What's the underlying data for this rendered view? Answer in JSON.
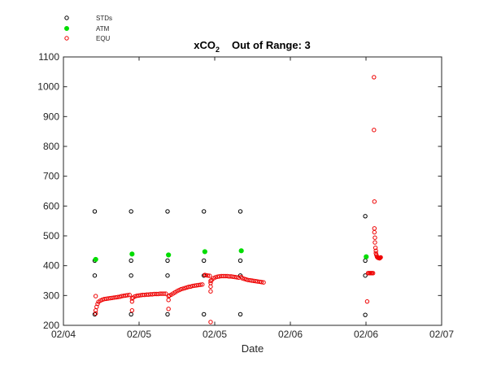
{
  "chart_data": {
    "type": "scatter",
    "title_main": "xCO",
    "title_sub": "2",
    "title_rest": "Out of Range: 3",
    "xlabel": "Date",
    "ylabel": "",
    "ylim": [
      200,
      1100
    ],
    "yticks": [
      200,
      300,
      400,
      500,
      600,
      700,
      800,
      900,
      1000,
      1100
    ],
    "x_ticks": [
      {
        "x": "2013-02-04T00:00",
        "label": "02/04"
      },
      {
        "x": "2013-02-04T12:00",
        "label": "02/05"
      },
      {
        "x": "2013-02-05T00:00",
        "label": "02/05"
      },
      {
        "x": "2013-02-05T12:00",
        "label": "02/06"
      },
      {
        "x": "2013-02-06T00:00",
        "label": "02/06"
      },
      {
        "x": "2013-02-06T12:00",
        "label": "02/07"
      }
    ],
    "xlim": [
      "2013-02-04T00:00",
      "2013-02-06T12:00"
    ],
    "legend_position": "top-left",
    "colors": {
      "stds": "#000000",
      "atm": "#00dd00",
      "equ": "#ee0000",
      "axis": "#262626"
    },
    "series": [
      {
        "name": "STDs",
        "marker": "open-circle",
        "points": [
          {
            "x": "2013-02-04T04:58",
            "y": 582
          },
          {
            "x": "2013-02-04T04:58",
            "y": 417
          },
          {
            "x": "2013-02-04T04:58",
            "y": 367
          },
          {
            "x": "2013-02-04T04:58",
            "y": 237
          },
          {
            "x": "2013-02-04T10:44",
            "y": 582
          },
          {
            "x": "2013-02-04T10:44",
            "y": 417
          },
          {
            "x": "2013-02-04T10:44",
            "y": 367
          },
          {
            "x": "2013-02-04T10:44",
            "y": 237
          },
          {
            "x": "2013-02-04T16:31",
            "y": 582
          },
          {
            "x": "2013-02-04T16:31",
            "y": 417
          },
          {
            "x": "2013-02-04T16:31",
            "y": 367
          },
          {
            "x": "2013-02-04T16:31",
            "y": 237
          },
          {
            "x": "2013-02-04T22:17",
            "y": 582
          },
          {
            "x": "2013-02-04T22:17",
            "y": 417
          },
          {
            "x": "2013-02-04T22:17",
            "y": 367
          },
          {
            "x": "2013-02-04T22:17",
            "y": 237
          },
          {
            "x": "2013-02-05T04:04",
            "y": 582
          },
          {
            "x": "2013-02-05T04:04",
            "y": 417
          },
          {
            "x": "2013-02-05T04:04",
            "y": 367
          },
          {
            "x": "2013-02-05T04:04",
            "y": 237
          },
          {
            "x": "2013-02-05T23:53",
            "y": 566
          },
          {
            "x": "2013-02-05T23:53",
            "y": 417
          },
          {
            "x": "2013-02-05T23:53",
            "y": 367
          },
          {
            "x": "2013-02-05T23:53",
            "y": 235
          }
        ]
      },
      {
        "name": "ATM",
        "marker": "filled-circle",
        "points": [
          {
            "x": "2013-02-04T05:07",
            "y": 421
          },
          {
            "x": "2013-02-04T10:53",
            "y": 439
          },
          {
            "x": "2013-02-04T16:40",
            "y": 436
          },
          {
            "x": "2013-02-04T22:26",
            "y": 447
          },
          {
            "x": "2013-02-05T04:13",
            "y": 450
          },
          {
            "x": "2013-02-06T00:02",
            "y": 430
          }
        ]
      },
      {
        "name": "EQU",
        "marker": "open-circle",
        "points": [
          {
            "x": "2013-02-04T05:07",
            "y": 298
          },
          {
            "x": "2013-02-04T05:07",
            "y": 250
          },
          {
            "x": "2013-02-04T05:07",
            "y": 240
          },
          {
            "x": "2013-02-04T05:16",
            "y": 262
          },
          {
            "x": "2013-02-04T05:25",
            "y": 272
          },
          {
            "x": "2013-02-04T05:34",
            "y": 279
          },
          {
            "x": "2013-02-04T05:53",
            "y": 283
          },
          {
            "x": "2013-02-04T06:11",
            "y": 286
          },
          {
            "x": "2013-02-04T06:29",
            "y": 288
          },
          {
            "x": "2013-02-04T06:48",
            "y": 289
          },
          {
            "x": "2013-02-04T07:06",
            "y": 290
          },
          {
            "x": "2013-02-04T07:25",
            "y": 291
          },
          {
            "x": "2013-02-04T07:43",
            "y": 292
          },
          {
            "x": "2013-02-04T08:01",
            "y": 293
          },
          {
            "x": "2013-02-04T08:20",
            "y": 294
          },
          {
            "x": "2013-02-04T08:38",
            "y": 295
          },
          {
            "x": "2013-02-04T08:57",
            "y": 296
          },
          {
            "x": "2013-02-04T09:15",
            "y": 298
          },
          {
            "x": "2013-02-04T09:34",
            "y": 299
          },
          {
            "x": "2013-02-04T09:52",
            "y": 300
          },
          {
            "x": "2013-02-04T10:10",
            "y": 301
          },
          {
            "x": "2013-02-04T10:29",
            "y": 302
          },
          {
            "x": "2013-02-04T10:53",
            "y": 290
          },
          {
            "x": "2013-02-04T10:53",
            "y": 280
          },
          {
            "x": "2013-02-04T10:53",
            "y": 250
          },
          {
            "x": "2013-02-04T11:02",
            "y": 293
          },
          {
            "x": "2013-02-04T11:20",
            "y": 297
          },
          {
            "x": "2013-02-04T11:39",
            "y": 299
          },
          {
            "x": "2013-02-04T11:57",
            "y": 300
          },
          {
            "x": "2013-02-04T12:16",
            "y": 301
          },
          {
            "x": "2013-02-04T12:34",
            "y": 302
          },
          {
            "x": "2013-02-04T12:52",
            "y": 302
          },
          {
            "x": "2013-02-04T13:11",
            "y": 303
          },
          {
            "x": "2013-02-04T13:29",
            "y": 303
          },
          {
            "x": "2013-02-04T13:48",
            "y": 304
          },
          {
            "x": "2013-02-04T14:06",
            "y": 304
          },
          {
            "x": "2013-02-04T14:24",
            "y": 305
          },
          {
            "x": "2013-02-04T14:43",
            "y": 305
          },
          {
            "x": "2013-02-04T15:01",
            "y": 305
          },
          {
            "x": "2013-02-04T15:20",
            "y": 306
          },
          {
            "x": "2013-02-04T15:38",
            "y": 306
          },
          {
            "x": "2013-02-04T15:57",
            "y": 306
          },
          {
            "x": "2013-02-04T16:15",
            "y": 306
          },
          {
            "x": "2013-02-04T16:40",
            "y": 298
          },
          {
            "x": "2013-02-04T16:40",
            "y": 285
          },
          {
            "x": "2013-02-04T16:40",
            "y": 255
          },
          {
            "x": "2013-02-04T16:49",
            "y": 300
          },
          {
            "x": "2013-02-04T17:07",
            "y": 303
          },
          {
            "x": "2013-02-04T17:26",
            "y": 307
          },
          {
            "x": "2013-02-04T17:44",
            "y": 311
          },
          {
            "x": "2013-02-04T18:03",
            "y": 315
          },
          {
            "x": "2013-02-04T18:21",
            "y": 318
          },
          {
            "x": "2013-02-04T18:39",
            "y": 321
          },
          {
            "x": "2013-02-04T18:58",
            "y": 323
          },
          {
            "x": "2013-02-04T19:16",
            "y": 325
          },
          {
            "x": "2013-02-04T19:35",
            "y": 327
          },
          {
            "x": "2013-02-04T19:53",
            "y": 329
          },
          {
            "x": "2013-02-04T20:11",
            "y": 330
          },
          {
            "x": "2013-02-04T20:30",
            "y": 332
          },
          {
            "x": "2013-02-04T20:48",
            "y": 333
          },
          {
            "x": "2013-02-04T21:07",
            "y": 334
          },
          {
            "x": "2013-02-04T21:25",
            "y": 335
          },
          {
            "x": "2013-02-04T21:44",
            "y": 336
          },
          {
            "x": "2013-02-04T22:02",
            "y": 337
          },
          {
            "x": "2013-02-04T22:26",
            "y": 369
          },
          {
            "x": "2013-02-04T22:35",
            "y": 368
          },
          {
            "x": "2013-02-04T22:54",
            "y": 367
          },
          {
            "x": "2013-02-04T23:12",
            "y": 366
          },
          {
            "x": "2013-02-04T23:21",
            "y": 349
          },
          {
            "x": "2013-02-04T23:21",
            "y": 342
          },
          {
            "x": "2013-02-04T23:21",
            "y": 330
          },
          {
            "x": "2013-02-04T23:21",
            "y": 314
          },
          {
            "x": "2013-02-04T23:21",
            "y": 211
          },
          {
            "x": "2013-02-04T23:31",
            "y": 352
          },
          {
            "x": "2013-02-04T23:49",
            "y": 358
          },
          {
            "x": "2013-02-05T00:07",
            "y": 361
          },
          {
            "x": "2013-02-05T00:26",
            "y": 363
          },
          {
            "x": "2013-02-05T00:44",
            "y": 364
          },
          {
            "x": "2013-02-05T01:03",
            "y": 365
          },
          {
            "x": "2013-02-05T01:21",
            "y": 365
          },
          {
            "x": "2013-02-05T01:39",
            "y": 365
          },
          {
            "x": "2013-02-05T01:58",
            "y": 365
          },
          {
            "x": "2013-02-05T02:16",
            "y": 364
          },
          {
            "x": "2013-02-05T02:35",
            "y": 364
          },
          {
            "x": "2013-02-05T02:53",
            "y": 363
          },
          {
            "x": "2013-02-05T03:12",
            "y": 362
          },
          {
            "x": "2013-02-05T03:30",
            "y": 361
          },
          {
            "x": "2013-02-05T03:48",
            "y": 360
          },
          {
            "x": "2013-02-05T04:13",
            "y": 362
          },
          {
            "x": "2013-02-05T04:22",
            "y": 358
          },
          {
            "x": "2013-02-05T04:40",
            "y": 356
          },
          {
            "x": "2013-02-05T04:59",
            "y": 354
          },
          {
            "x": "2013-02-05T05:17",
            "y": 352
          },
          {
            "x": "2013-02-05T05:36",
            "y": 351
          },
          {
            "x": "2013-02-05T05:54",
            "y": 350
          },
          {
            "x": "2013-02-05T06:12",
            "y": 349
          },
          {
            "x": "2013-02-05T06:31",
            "y": 348
          },
          {
            "x": "2013-02-05T06:49",
            "y": 347
          },
          {
            "x": "2013-02-05T07:08",
            "y": 346
          },
          {
            "x": "2013-02-05T07:26",
            "y": 345
          },
          {
            "x": "2013-02-05T07:45",
            "y": 344
          },
          {
            "x": "2013-02-06T00:11",
            "y": 280
          },
          {
            "x": "2013-02-06T00:20",
            "y": 375
          },
          {
            "x": "2013-02-06T00:30",
            "y": 375
          },
          {
            "x": "2013-02-06T00:39",
            "y": 375
          },
          {
            "x": "2013-02-06T00:48",
            "y": 375
          },
          {
            "x": "2013-02-06T00:57",
            "y": 375
          },
          {
            "x": "2013-02-06T01:07",
            "y": 375
          },
          {
            "x": "2013-02-06T01:16",
            "y": 1032
          },
          {
            "x": "2013-02-06T01:16",
            "y": 855
          },
          {
            "x": "2013-02-06T01:20",
            "y": 615
          },
          {
            "x": "2013-02-06T01:20",
            "y": 525
          },
          {
            "x": "2013-02-06T01:20",
            "y": 512
          },
          {
            "x": "2013-02-06T01:25",
            "y": 494
          },
          {
            "x": "2013-02-06T01:25",
            "y": 478
          },
          {
            "x": "2013-02-06T01:30",
            "y": 460
          },
          {
            "x": "2013-02-06T01:34",
            "y": 450
          },
          {
            "x": "2013-02-06T01:34",
            "y": 442
          },
          {
            "x": "2013-02-06T01:39",
            "y": 436
          },
          {
            "x": "2013-02-06T01:44",
            "y": 431
          },
          {
            "x": "2013-02-06T01:48",
            "y": 428
          },
          {
            "x": "2013-02-06T01:53",
            "y": 427
          },
          {
            "x": "2013-02-06T01:57",
            "y": 426
          },
          {
            "x": "2013-02-06T02:02",
            "y": 426
          },
          {
            "x": "2013-02-06T02:06",
            "y": 425
          },
          {
            "x": "2013-02-06T02:11",
            "y": 425
          },
          {
            "x": "2013-02-06T02:16",
            "y": 427
          },
          {
            "x": "2013-02-06T02:20",
            "y": 428
          }
        ]
      }
    ]
  }
}
